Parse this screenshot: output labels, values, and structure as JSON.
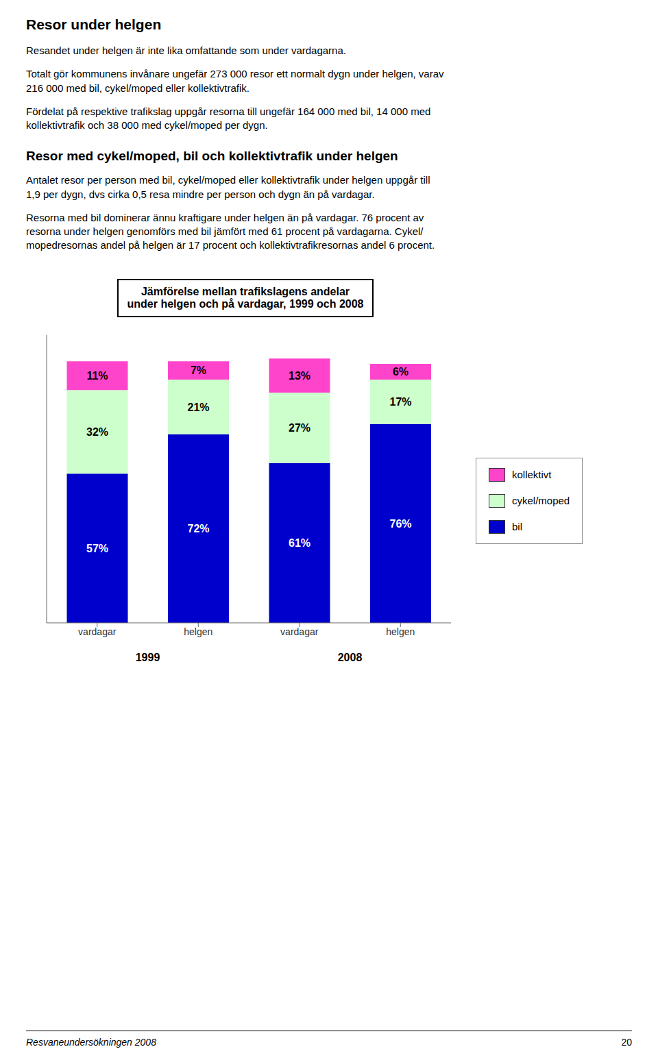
{
  "chart_data": {
    "type": "bar",
    "title": "Jämförelse mellan trafikslagens andelar\nunder helgen och på vardagar, 1999 och 2008",
    "categories": [
      "vardagar",
      "helgen",
      "vardagar",
      "helgen"
    ],
    "series": [
      {
        "name": "bil",
        "color": "#0000CC",
        "values": [
          57,
          72,
          61,
          76
        ],
        "value_labels": [
          "57%",
          "72%",
          "61%",
          "76%"
        ]
      },
      {
        "name": "cykel/moped",
        "color": "#CCFFCC",
        "values": [
          32,
          21,
          27,
          17
        ],
        "value_labels": [
          "32%",
          "21%",
          "27%",
          "17%"
        ]
      },
      {
        "name": "kollektivt",
        "color": "#FF44CC",
        "values": [
          11,
          7,
          13,
          6
        ],
        "value_labels": [
          "11%",
          "7%",
          "13%",
          "6%"
        ]
      }
    ],
    "stacked": true,
    "data_labels": true,
    "ylim": [
      0,
      110
    ],
    "yticks": [],
    "tick_labels": "x",
    "grid": false,
    "legend": "right",
    "annotations": [
      "1999",
      "2008",
      "Resor under helgen",
      "Resandet under helgen är inte lika omfattande som under vardagarna.",
      "Totalt gör kommunens invånare ungefär 273 000 resor ett normalt dygn under helgen, varav\n216 000 med bil, cykel/moped eller kollektivtrafik.",
      "Fördelat på respektive trafikslag uppgår resorna till ungefär 164 000 med bil, 14 000 med\nkollektivtrafik och 38 000 med cykel/moped per dygn.",
      "Resor med cykel/moped, bil och kollektivtrafik under helgen",
      "Antalet resor per person med bil, cykel/moped eller kollektivtrafik under helgen uppgår till\n1,9 per dygn, dvs cirka 0,5 resa mindre per person och dygn än på vardagar.",
      "Resorna med bil dominerar ännu kraftigare under helgen än på vardagar. 76 procent av\nresorna under helgen genomförs med bil jämfört med 61 procent på vardagarna. Cykel/\nmopedresornas andel på helgen är 17 procent och kollektivtrafikresornas andel 6 procent.",
      "Resvaneundersökningen 2008",
      "20"
    ]
  }
}
